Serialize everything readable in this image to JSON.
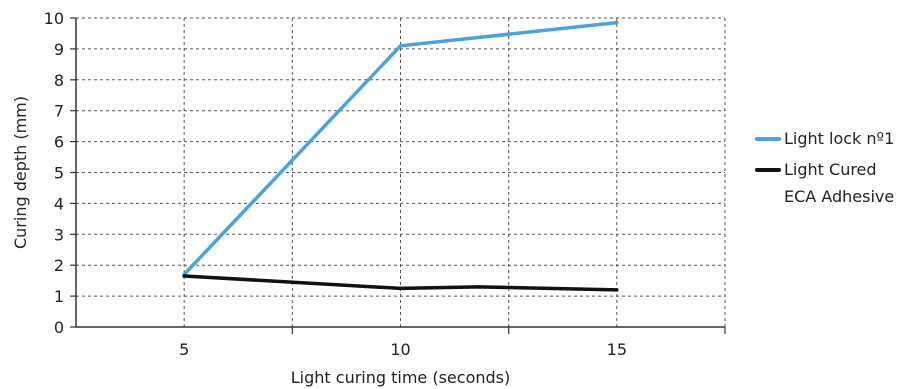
{
  "chart_data": {
    "type": "line",
    "xlabel": "Light curing time (seconds)",
    "ylabel": "Curing depth (mm)",
    "x_ticks": [
      5,
      10,
      15
    ],
    "y_ticks": [
      0,
      1,
      2,
      3,
      4,
      5,
      6,
      7,
      8,
      9,
      10
    ],
    "xlim": [
      2.5,
      17.5
    ],
    "ylim": [
      0,
      10
    ],
    "grid": true,
    "legend_position": "right",
    "series": [
      {
        "name": "Light lock nº1",
        "color": "#4aa3df",
        "points": [
          [
            5,
            1.7
          ],
          [
            10,
            9.1
          ],
          [
            15,
            9.85
          ]
        ]
      },
      {
        "name": "Light Cured ECA Adhesive",
        "name_lines": [
          "Light Cured",
          "ECA Adhesive"
        ],
        "color": "#111111",
        "points": [
          [
            5,
            1.65
          ],
          [
            10,
            1.25
          ],
          [
            11.8,
            1.3
          ],
          [
            15,
            1.2
          ]
        ]
      }
    ]
  }
}
